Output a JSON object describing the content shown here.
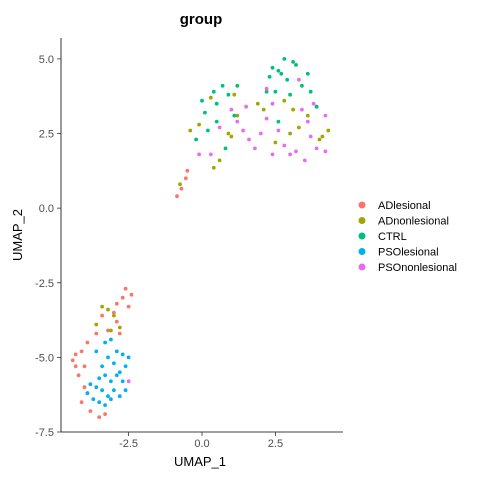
{
  "chart_data": {
    "type": "scatter",
    "title": "group",
    "xlabel": "UMAP_1",
    "ylabel": "UMAP_2",
    "xlim": [
      -4.8,
      4.8
    ],
    "ylim": [
      -7.5,
      5.7
    ],
    "x_ticks": [
      -2.5,
      0.0,
      2.5
    ],
    "y_ticks": [
      -7.5,
      -5.0,
      -2.5,
      0.0,
      2.5,
      5.0
    ],
    "x_tick_labels": [
      "-2.5",
      "0.0",
      "2.5"
    ],
    "y_tick_labels": [
      "-7.5",
      "-5.0",
      "-2.5",
      "0.0",
      "2.5",
      "5.0"
    ],
    "grid": false,
    "legend_position": "right",
    "series": [
      {
        "name": "ADlesional",
        "color": "#F8766D",
        "points": [
          [
            -2.6,
            -2.7
          ],
          [
            -2.4,
            -2.9
          ],
          [
            -2.7,
            -3.0
          ],
          [
            -2.5,
            -3.3
          ],
          [
            -3.0,
            -3.5
          ],
          [
            -2.9,
            -3.8
          ],
          [
            -3.2,
            -4.1
          ],
          [
            -3.6,
            -4.2
          ],
          [
            -3.9,
            -4.5
          ],
          [
            -4.1,
            -4.8
          ],
          [
            -4.3,
            -4.9
          ],
          [
            -4.4,
            -5.1
          ],
          [
            -4.0,
            -5.3
          ],
          [
            -4.2,
            -5.6
          ],
          [
            -3.9,
            -6.2
          ],
          [
            -4.1,
            -6.5
          ],
          [
            -3.8,
            -6.8
          ],
          [
            -3.5,
            -7.0
          ],
          [
            -3.3,
            -6.9
          ],
          [
            -4.0,
            -6.0
          ],
          [
            -2.8,
            -4.2
          ],
          [
            -3.4,
            -3.6
          ],
          [
            -2.9,
            -3.2
          ],
          [
            -4.3,
            -5.3
          ],
          [
            -0.85,
            0.4
          ],
          [
            -0.7,
            0.65
          ],
          [
            -0.55,
            1.0
          ],
          [
            -0.5,
            1.25
          ]
        ]
      },
      {
        "name": "ADnonlesional",
        "color": "#A3A500",
        "points": [
          [
            -3.4,
            -3.3
          ],
          [
            -3.2,
            -3.4
          ],
          [
            -3.0,
            -3.6
          ],
          [
            -3.1,
            -4.1
          ],
          [
            -3.6,
            -3.9
          ],
          [
            -2.8,
            -4.0
          ],
          [
            -0.75,
            0.8
          ],
          [
            -0.4,
            2.6
          ],
          [
            -0.1,
            2.8
          ],
          [
            0.3,
            3.7
          ],
          [
            0.4,
            1.35
          ],
          [
            0.6,
            1.6
          ],
          [
            0.9,
            2.5
          ],
          [
            1.2,
            3.1
          ],
          [
            1.0,
            2.4
          ],
          [
            1.1,
            3.8
          ],
          [
            1.9,
            3.5
          ],
          [
            2.1,
            3.3
          ],
          [
            2.5,
            2.2
          ],
          [
            2.8,
            3.6
          ],
          [
            3.0,
            2.5
          ],
          [
            3.1,
            3.3
          ],
          [
            3.3,
            2.7
          ],
          [
            3.6,
            3.1
          ],
          [
            3.9,
            3.4
          ],
          [
            4.0,
            2.3
          ],
          [
            4.1,
            2.4
          ],
          [
            4.3,
            2.6
          ]
        ]
      },
      {
        "name": "CTRL",
        "color": "#00BF7D",
        "points": [
          [
            -0.2,
            2.3
          ],
          [
            0.0,
            3.6
          ],
          [
            0.1,
            3.2
          ],
          [
            0.2,
            2.6
          ],
          [
            0.4,
            3.9
          ],
          [
            0.5,
            3.5
          ],
          [
            0.7,
            4.1
          ],
          [
            0.9,
            3.8
          ],
          [
            1.1,
            3.1
          ],
          [
            1.2,
            4.1
          ],
          [
            0.8,
            2.0
          ],
          [
            0.5,
            2.9
          ],
          [
            2.2,
            3.9
          ],
          [
            2.3,
            4.4
          ],
          [
            2.4,
            4.7
          ],
          [
            2.5,
            3.9
          ],
          [
            2.6,
            4.6
          ],
          [
            2.7,
            4.5
          ],
          [
            2.8,
            5.0
          ],
          [
            2.9,
            4.3
          ],
          [
            3.0,
            3.8
          ],
          [
            3.1,
            4.9
          ],
          [
            3.2,
            4.8
          ],
          [
            3.4,
            4.1
          ],
          [
            3.6,
            4.5
          ],
          [
            3.7,
            3.9
          ],
          [
            3.9,
            3.4
          ],
          [
            2.6,
            2.9
          ]
        ]
      },
      {
        "name": "PSOlesional",
        "color": "#00B0F6",
        "points": [
          [
            -3.6,
            -4.8
          ],
          [
            -3.3,
            -4.5
          ],
          [
            -3.1,
            -4.4
          ],
          [
            -2.9,
            -4.8
          ],
          [
            -2.7,
            -4.9
          ],
          [
            -2.5,
            -5.0
          ],
          [
            -2.6,
            -5.3
          ],
          [
            -2.8,
            -5.5
          ],
          [
            -3.0,
            -5.2
          ],
          [
            -3.2,
            -5.0
          ],
          [
            -3.4,
            -5.3
          ],
          [
            -3.5,
            -5.7
          ],
          [
            -3.3,
            -5.6
          ],
          [
            -3.1,
            -5.8
          ],
          [
            -2.9,
            -5.6
          ],
          [
            -2.7,
            -5.8
          ],
          [
            -2.6,
            -6.1
          ],
          [
            -3.0,
            -6.1
          ],
          [
            -3.2,
            -6.3
          ],
          [
            -3.4,
            -6.1
          ],
          [
            -3.6,
            -6.0
          ],
          [
            -3.8,
            -5.9
          ],
          [
            -3.9,
            -6.2
          ],
          [
            -3.7,
            -6.4
          ],
          [
            -3.5,
            -6.5
          ],
          [
            -3.3,
            -6.6
          ],
          [
            -3.1,
            -6.4
          ],
          [
            -2.8,
            -6.3
          ]
        ]
      },
      {
        "name": "PSOnonlesional",
        "color": "#E76BF3",
        "points": [
          [
            -0.1,
            1.8
          ],
          [
            0.3,
            1.8
          ],
          [
            0.6,
            2.7
          ],
          [
            1.0,
            3.3
          ],
          [
            1.2,
            2.9
          ],
          [
            1.4,
            2.6
          ],
          [
            1.5,
            3.4
          ],
          [
            1.6,
            2.3
          ],
          [
            1.8,
            2.0
          ],
          [
            2.0,
            2.5
          ],
          [
            2.2,
            3.0
          ],
          [
            2.4,
            1.8
          ],
          [
            2.6,
            2.6
          ],
          [
            2.8,
            2.1
          ],
          [
            3.0,
            1.8
          ],
          [
            3.2,
            1.9
          ],
          [
            3.5,
            1.6
          ],
          [
            3.7,
            2.4
          ],
          [
            3.9,
            2.0
          ],
          [
            4.2,
            1.9
          ],
          [
            3.4,
            3.3
          ],
          [
            3.6,
            2.9
          ],
          [
            3.8,
            3.5
          ],
          [
            2.2,
            4.0
          ],
          [
            2.4,
            3.5
          ],
          [
            3.3,
            4.3
          ],
          [
            4.2,
            3.1
          ],
          [
            -2.5,
            -5.8
          ]
        ]
      }
    ]
  }
}
